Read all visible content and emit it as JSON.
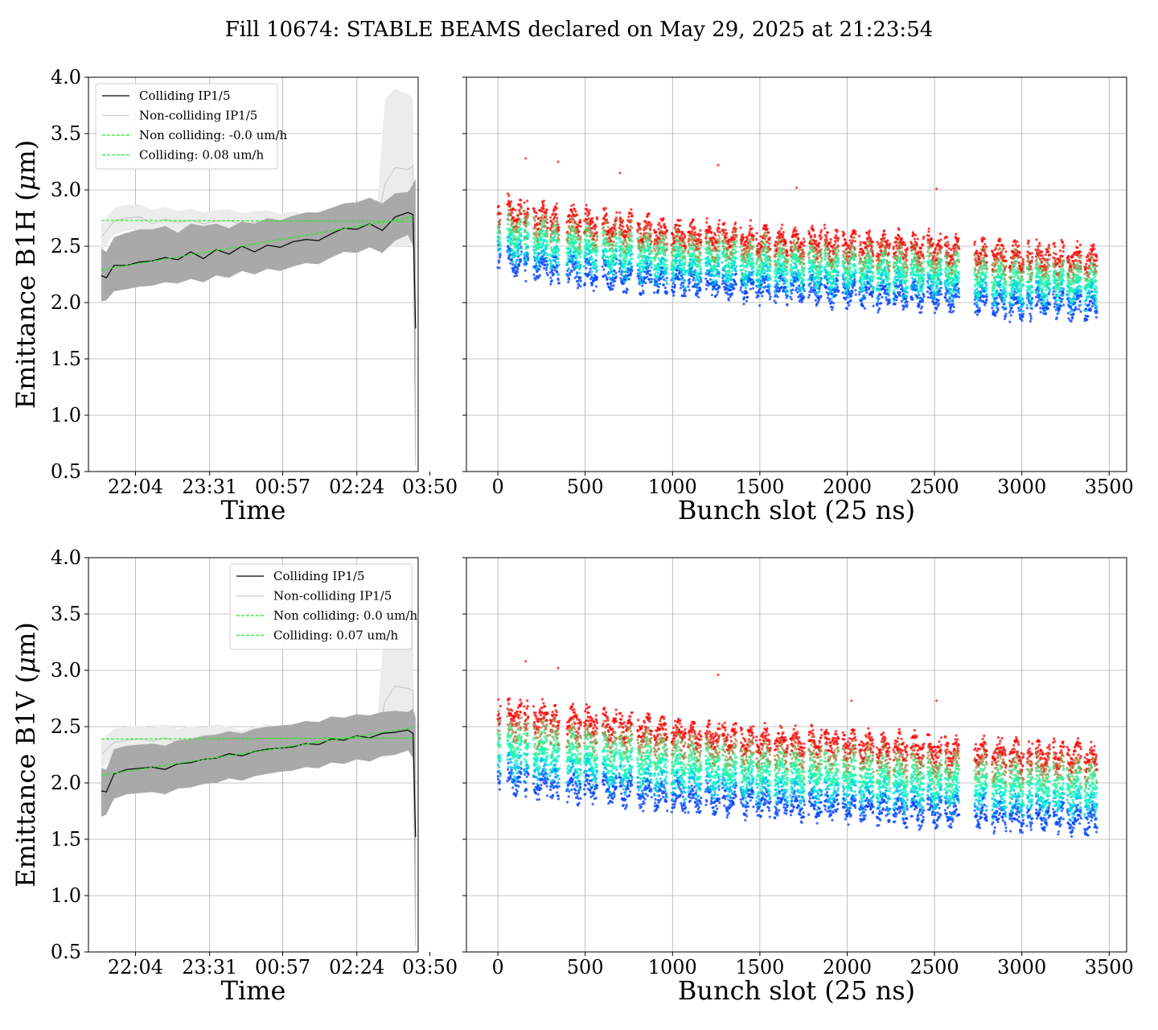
{
  "figure": {
    "suptitle": "Fill 10674: STABLE BEAMS declared on May 29, 2025 at 21:23:54",
    "colors": {
      "colliding": "#000000",
      "colliding_band": "#a9a9a9",
      "non_colliding": "#cccccc",
      "non_colliding_band": "#ececec",
      "fit": "#22ee22",
      "grid": "#b0b0b0"
    }
  },
  "chart_data": [
    {
      "id": "time-b1h",
      "type": "line",
      "xlabel": "Time",
      "ylabel_prefix": "Emittance B1H (",
      "ylabel_mu": "μ",
      "ylabel_suffix": "m)",
      "xlim": [
        -0.25,
        6.2
      ],
      "ylim": [
        0.5,
        4.0
      ],
      "xticks": [
        0.67,
        2.12,
        3.55,
        5.0,
        6.43
      ],
      "xtick_labels": [
        "22:04",
        "23:31",
        "00:57",
        "02:24",
        "03:50"
      ],
      "yticks": [
        0.5,
        1.0,
        1.5,
        2.0,
        2.5,
        3.0,
        3.5,
        4.0
      ],
      "ytick_labels": [
        "0.5",
        "1.0",
        "1.5",
        "2.0",
        "2.5",
        "3.0",
        "3.5",
        "4.0"
      ],
      "grid": true,
      "legend_loc": "upper-left",
      "legend": [
        "Colliding IP1/5",
        "Non-colliding IP1/5",
        "Non colliding: -0.0 um/h",
        "Colliding: 0.08 um/h"
      ],
      "colliding": {
        "x": [
          0.0,
          0.1,
          0.25,
          0.5,
          0.75,
          1.0,
          1.25,
          1.5,
          1.75,
          2.0,
          2.25,
          2.5,
          2.75,
          3.0,
          3.25,
          3.5,
          3.75,
          4.0,
          4.25,
          4.5,
          4.75,
          5.0,
          5.25,
          5.5,
          5.75,
          6.0,
          6.1,
          6.15
        ],
        "y": [
          2.24,
          2.22,
          2.33,
          2.33,
          2.36,
          2.37,
          2.4,
          2.38,
          2.45,
          2.39,
          2.47,
          2.43,
          2.5,
          2.45,
          2.51,
          2.49,
          2.54,
          2.56,
          2.55,
          2.61,
          2.66,
          2.65,
          2.7,
          2.64,
          2.76,
          2.8,
          2.78,
          1.77
        ],
        "upper": [
          2.48,
          2.45,
          2.58,
          2.62,
          2.65,
          2.65,
          2.68,
          2.62,
          2.7,
          2.68,
          2.7,
          2.66,
          2.72,
          2.7,
          2.75,
          2.73,
          2.77,
          2.8,
          2.8,
          2.84,
          2.88,
          2.89,
          2.93,
          2.88,
          2.97,
          2.98,
          3.05,
          3.1
        ],
        "lower": [
          2.01,
          2.02,
          2.1,
          2.12,
          2.14,
          2.15,
          2.18,
          2.17,
          2.21,
          2.18,
          2.24,
          2.22,
          2.28,
          2.25,
          2.3,
          2.28,
          2.32,
          2.35,
          2.34,
          2.4,
          2.45,
          2.44,
          2.49,
          2.44,
          2.55,
          2.6,
          2.5,
          0.55
        ]
      },
      "non_colliding": {
        "x": [
          0.0,
          0.25,
          0.5,
          0.75,
          1.0,
          1.25,
          1.5,
          1.75,
          2.0,
          2.25,
          2.5,
          2.75,
          3.0,
          3.25,
          3.5,
          3.75,
          4.0,
          4.25,
          4.5,
          4.75,
          5.0,
          5.25,
          5.4,
          5.55,
          5.75,
          6.0,
          6.1,
          6.15
        ],
        "y": [
          2.58,
          2.72,
          2.75,
          2.76,
          2.7,
          2.74,
          2.71,
          2.73,
          2.7,
          2.72,
          2.73,
          2.69,
          2.71,
          2.73,
          2.7,
          2.72,
          2.69,
          2.71,
          2.73,
          2.7,
          2.72,
          2.74,
          2.72,
          3.05,
          3.2,
          3.18,
          3.22,
          0.55
        ],
        "upper": [
          2.7,
          2.84,
          2.87,
          2.87,
          2.82,
          2.85,
          2.81,
          2.83,
          2.8,
          2.82,
          2.83,
          2.79,
          2.81,
          2.82,
          2.79,
          2.81,
          2.78,
          2.8,
          2.82,
          2.79,
          2.81,
          2.83,
          2.85,
          3.8,
          3.9,
          3.85,
          3.8,
          0.55
        ],
        "lower": [
          2.46,
          2.6,
          2.64,
          2.65,
          2.59,
          2.62,
          2.6,
          2.62,
          2.6,
          2.61,
          2.62,
          2.59,
          2.61,
          2.63,
          2.6,
          2.62,
          2.6,
          2.61,
          2.63,
          2.61,
          2.62,
          2.64,
          2.6,
          2.48,
          2.5,
          2.5,
          2.55,
          0.55
        ]
      },
      "fit_non_colliding": {
        "x": [
          0.0,
          6.1
        ],
        "y": [
          2.73,
          2.72
        ]
      },
      "fit_colliding": {
        "x": [
          0.0,
          6.1
        ],
        "y": [
          2.29,
          2.76
        ]
      }
    },
    {
      "id": "bunch-b1h",
      "type": "scatter",
      "xlabel": "Bunch slot (25 ns)",
      "xlim": [
        -180,
        3600
      ],
      "ylim": [
        0.5,
        4.0
      ],
      "xticks": [
        0,
        500,
        1000,
        1500,
        2000,
        2500,
        3000,
        3500
      ],
      "xtick_labels": [
        "0",
        "500",
        "1000",
        "1500",
        "2000",
        "2500",
        "3000",
        "3500"
      ],
      "yticks": [
        0.5,
        1.0,
        1.5,
        2.0,
        2.5,
        3.0,
        3.5,
        4.0
      ],
      "grid": true,
      "colormap": "rainbow",
      "trains": [
        [
          0,
          15
        ],
        [
          55,
          135
        ],
        [
          150,
          175
        ],
        [
          205,
          285
        ],
        [
          300,
          350
        ],
        [
          395,
          475
        ],
        [
          495,
          570
        ],
        [
          600,
          680
        ],
        [
          695,
          770
        ],
        [
          800,
          880
        ],
        [
          895,
          970
        ],
        [
          995,
          1075
        ],
        [
          1090,
          1165
        ],
        [
          1190,
          1270
        ],
        [
          1285,
          1365
        ],
        [
          1390,
          1465
        ],
        [
          1480,
          1560
        ],
        [
          1585,
          1660
        ],
        [
          1675,
          1755
        ],
        [
          1780,
          1855
        ],
        [
          1870,
          1950
        ],
        [
          1975,
          2050
        ],
        [
          2070,
          2150
        ],
        [
          2170,
          2245
        ],
        [
          2265,
          2345
        ],
        [
          2365,
          2440
        ],
        [
          2460,
          2540
        ],
        [
          2560,
          2640
        ],
        [
          2730,
          2800
        ],
        [
          2830,
          2910
        ],
        [
          2930,
          3010
        ],
        [
          3030,
          3060
        ],
        [
          3080,
          3160
        ],
        [
          3180,
          3240
        ],
        [
          3260,
          3340
        ],
        [
          3360,
          3430
        ]
      ],
      "band_upper": {
        "x": [
          0,
          500,
          1000,
          1500,
          2000,
          2500,
          3000,
          3430
        ],
        "y": [
          2.82,
          2.72,
          2.62,
          2.56,
          2.52,
          2.49,
          2.42,
          2.4
        ]
      },
      "band_lower": {
        "x": [
          0,
          500,
          1000,
          1500,
          2000,
          2500,
          3000,
          3430
        ],
        "y": [
          2.38,
          2.26,
          2.18,
          2.13,
          2.09,
          2.05,
          1.98,
          1.96
        ]
      },
      "spikes": [
        {
          "x": 160,
          "y": 3.28
        },
        {
          "x": 345,
          "y": 3.25
        },
        {
          "x": 1262,
          "y": 3.22
        },
        {
          "x": 1710,
          "y": 3.02
        },
        {
          "x": 2512,
          "y": 3.01
        },
        {
          "x": 700,
          "y": 3.15
        }
      ]
    },
    {
      "id": "time-b1v",
      "type": "line",
      "xlabel": "Time",
      "ylabel_prefix": "Emittance B1V (",
      "ylabel_mu": "μ",
      "ylabel_suffix": "m)",
      "xlim": [
        -0.25,
        6.2
      ],
      "ylim": [
        0.5,
        4.0
      ],
      "xticks": [
        0.67,
        2.12,
        3.55,
        5.0,
        6.43
      ],
      "xtick_labels": [
        "22:04",
        "23:31",
        "00:57",
        "02:24",
        "03:50"
      ],
      "yticks": [
        0.5,
        1.0,
        1.5,
        2.0,
        2.5,
        3.0,
        3.5,
        4.0
      ],
      "ytick_labels": [
        "0.5",
        "1.0",
        "1.5",
        "2.0",
        "2.5",
        "3.0",
        "3.5",
        "4.0"
      ],
      "grid": true,
      "legend_loc": "upper-right",
      "legend": [
        "Colliding IP1/5",
        "Non-colliding IP1/5",
        "Non colliding: 0.0 um/h",
        "Colliding: 0.07 um/h"
      ],
      "colliding": {
        "x": [
          0.0,
          0.1,
          0.25,
          0.5,
          0.75,
          1.0,
          1.25,
          1.5,
          1.75,
          2.0,
          2.25,
          2.5,
          2.75,
          3.0,
          3.25,
          3.5,
          3.75,
          4.0,
          4.25,
          4.5,
          4.75,
          5.0,
          5.25,
          5.5,
          5.75,
          6.0,
          6.1,
          6.15
        ],
        "y": [
          1.93,
          1.92,
          2.08,
          2.12,
          2.13,
          2.14,
          2.12,
          2.17,
          2.18,
          2.21,
          2.22,
          2.26,
          2.24,
          2.28,
          2.3,
          2.31,
          2.32,
          2.35,
          2.34,
          2.39,
          2.38,
          2.42,
          2.4,
          2.44,
          2.45,
          2.47,
          2.44,
          1.52
        ],
        "upper": [
          2.13,
          2.12,
          2.3,
          2.33,
          2.34,
          2.35,
          2.33,
          2.38,
          2.39,
          2.42,
          2.43,
          2.46,
          2.44,
          2.48,
          2.5,
          2.51,
          2.52,
          2.55,
          2.54,
          2.59,
          2.58,
          2.61,
          2.6,
          2.63,
          2.64,
          2.63,
          2.66,
          2.58
        ],
        "lower": [
          1.7,
          1.72,
          1.86,
          1.9,
          1.91,
          1.92,
          1.9,
          1.95,
          1.96,
          1.99,
          2.0,
          2.04,
          2.02,
          2.06,
          2.08,
          2.1,
          2.11,
          2.14,
          2.13,
          2.18,
          2.17,
          2.21,
          2.19,
          2.24,
          2.25,
          2.29,
          2.22,
          0.55
        ]
      },
      "non_colliding": {
        "x": [
          0.0,
          0.25,
          0.5,
          0.75,
          1.0,
          1.25,
          1.5,
          1.75,
          2.0,
          2.25,
          2.5,
          2.75,
          3.0,
          3.25,
          3.5,
          3.75,
          4.0,
          4.25,
          4.5,
          4.75,
          5.0,
          5.25,
          5.4,
          5.55,
          5.75,
          6.0,
          6.1,
          6.15
        ],
        "y": [
          2.25,
          2.36,
          2.38,
          2.39,
          2.37,
          2.4,
          2.36,
          2.39,
          2.37,
          2.4,
          2.38,
          2.35,
          2.38,
          2.4,
          2.37,
          2.39,
          2.36,
          2.39,
          2.41,
          2.38,
          2.4,
          2.42,
          2.4,
          2.72,
          2.86,
          2.84,
          2.82,
          0.55
        ],
        "upper": [
          2.38,
          2.48,
          2.5,
          2.51,
          2.49,
          2.52,
          2.48,
          2.51,
          2.49,
          2.52,
          2.5,
          2.47,
          2.5,
          2.52,
          2.49,
          2.51,
          2.48,
          2.51,
          2.53,
          2.5,
          2.52,
          2.54,
          2.56,
          3.45,
          3.55,
          3.55,
          3.5,
          0.55
        ],
        "lower": [
          2.12,
          2.24,
          2.26,
          2.27,
          2.25,
          2.28,
          2.24,
          2.27,
          2.25,
          2.28,
          2.26,
          2.23,
          2.26,
          2.28,
          2.25,
          2.27,
          2.24,
          2.27,
          2.29,
          2.26,
          2.28,
          2.3,
          2.25,
          2.22,
          2.25,
          2.28,
          2.3,
          0.55
        ]
      },
      "fit_non_colliding": {
        "x": [
          0.0,
          6.1
        ],
        "y": [
          2.39,
          2.4
        ]
      },
      "fit_colliding": {
        "x": [
          0.0,
          6.1
        ],
        "y": [
          2.07,
          2.49
        ]
      }
    },
    {
      "id": "bunch-b1v",
      "type": "scatter",
      "xlabel": "Bunch slot (25 ns)",
      "xlim": [
        -180,
        3600
      ],
      "ylim": [
        0.5,
        4.0
      ],
      "xticks": [
        0,
        500,
        1000,
        1500,
        2000,
        2500,
        3000,
        3500
      ],
      "xtick_labels": [
        "0",
        "500",
        "1000",
        "1500",
        "2000",
        "2500",
        "3000",
        "3500"
      ],
      "yticks": [
        0.5,
        1.0,
        1.5,
        2.0,
        2.5,
        3.0,
        3.5,
        4.0
      ],
      "grid": true,
      "colormap": "rainbow",
      "trains": [
        [
          0,
          15
        ],
        [
          55,
          135
        ],
        [
          150,
          175
        ],
        [
          205,
          285
        ],
        [
          300,
          350
        ],
        [
          395,
          475
        ],
        [
          495,
          570
        ],
        [
          600,
          680
        ],
        [
          695,
          770
        ],
        [
          800,
          880
        ],
        [
          895,
          970
        ],
        [
          995,
          1075
        ],
        [
          1090,
          1165
        ],
        [
          1190,
          1270
        ],
        [
          1285,
          1365
        ],
        [
          1390,
          1465
        ],
        [
          1480,
          1560
        ],
        [
          1585,
          1660
        ],
        [
          1675,
          1755
        ],
        [
          1780,
          1855
        ],
        [
          1870,
          1950
        ],
        [
          1975,
          2050
        ],
        [
          2070,
          2150
        ],
        [
          2170,
          2245
        ],
        [
          2265,
          2345
        ],
        [
          2365,
          2440
        ],
        [
          2460,
          2540
        ],
        [
          2560,
          2640
        ],
        [
          2730,
          2800
        ],
        [
          2830,
          2910
        ],
        [
          2930,
          3010
        ],
        [
          3030,
          3060
        ],
        [
          3080,
          3160
        ],
        [
          3180,
          3240
        ],
        [
          3260,
          3340
        ],
        [
          3360,
          3430
        ]
      ],
      "band_upper": {
        "x": [
          0,
          500,
          1000,
          1500,
          2000,
          2500,
          3000,
          3430
        ],
        "y": [
          2.62,
          2.55,
          2.46,
          2.38,
          2.35,
          2.3,
          2.26,
          2.24
        ]
      },
      "band_lower": {
        "x": [
          0,
          500,
          1000,
          1500,
          2000,
          2500,
          3000,
          3430
        ],
        "y": [
          2.03,
          1.95,
          1.87,
          1.82,
          1.78,
          1.74,
          1.7,
          1.67
        ]
      },
      "spikes": [
        {
          "x": 160,
          "y": 3.08
        },
        {
          "x": 345,
          "y": 3.02
        },
        {
          "x": 1262,
          "y": 2.96
        },
        {
          "x": 2512,
          "y": 2.73
        },
        {
          "x": 2025,
          "y": 2.73
        }
      ]
    }
  ]
}
